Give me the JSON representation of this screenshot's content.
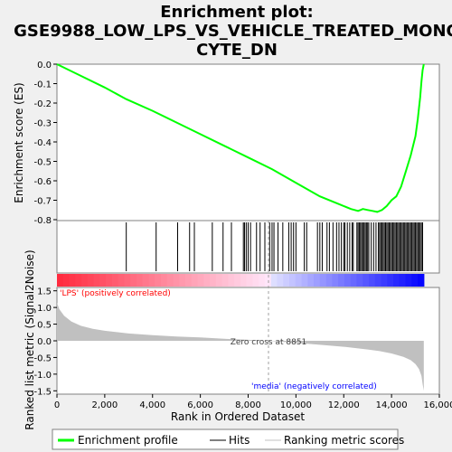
{
  "chart_data": {
    "type": "line",
    "title_lines": [
      "Enrichment plot:",
      "GSE9988_LOW_LPS_VS_VEHICLE_TREATED_MONO",
      "CYTE_DN"
    ],
    "xlabel": "Rank in Ordered Dataset",
    "xlim": [
      0,
      16000
    ],
    "x_ticks": [
      0,
      2000,
      4000,
      6000,
      8000,
      10000,
      12000,
      14000,
      16000
    ],
    "x_tick_labels": [
      "0",
      "2,000",
      "4,000",
      "6,000",
      "8,000",
      "10,000",
      "12,000",
      "14,000",
      "16,000"
    ],
    "enrichment_panel": {
      "ylabel": "Enrichment score (ES)",
      "ylim": [
        -0.8,
        0.0
      ],
      "y_ticks": [
        0.0,
        -0.1,
        -0.2,
        -0.3,
        -0.4,
        -0.5,
        -0.6,
        -0.7,
        -0.8
      ],
      "y_tick_labels": [
        "0.0",
        "-0.1",
        "-0.2",
        "-0.3",
        "-0.4",
        "-0.5",
        "-0.6",
        "-0.7",
        "-0.8"
      ],
      "series_name": "Enrichment profile",
      "color": "#00ff00",
      "x": [
        0,
        1000,
        2000,
        2900,
        4000,
        5000,
        6000,
        7000,
        8000,
        9000,
        10000,
        11000,
        11800,
        12300,
        12600,
        12700,
        12800,
        13000,
        13200,
        13400,
        13600,
        13800,
        14000,
        14200,
        14400,
        14600,
        14800,
        15000,
        15100,
        15200,
        15250,
        15300,
        15350
      ],
      "y": [
        0.0,
        -0.06,
        -0.12,
        -0.18,
        -0.24,
        -0.3,
        -0.36,
        -0.42,
        -0.48,
        -0.54,
        -0.61,
        -0.68,
        -0.72,
        -0.745,
        -0.755,
        -0.75,
        -0.745,
        -0.75,
        -0.755,
        -0.76,
        -0.75,
        -0.73,
        -0.7,
        -0.68,
        -0.63,
        -0.55,
        -0.47,
        -0.37,
        -0.28,
        -0.17,
        -0.09,
        -0.03,
        0.0
      ]
    },
    "hits_panel": {
      "series_name": "Hits",
      "hit_positions": [
        2900,
        4150,
        5050,
        5550,
        5750,
        6500,
        6950,
        7300,
        7800,
        7850,
        7920,
        8000,
        8100,
        8350,
        8500,
        8700,
        8900,
        9000,
        9080,
        9250,
        9450,
        9700,
        9800,
        9900,
        10000,
        10350,
        10450,
        10900,
        11000,
        11100,
        11300,
        11400,
        11550,
        11700,
        11800,
        11900,
        12000,
        12050,
        12150,
        12250,
        12350,
        12400,
        12550,
        12600,
        12650,
        12700,
        12750,
        12800,
        12850,
        12900,
        12950,
        13000,
        13050,
        13150,
        13250,
        13350,
        13450,
        13500,
        13550,
        13600,
        13650,
        13700,
        13750,
        13800,
        13850,
        13900,
        13950,
        14000,
        14050,
        14100,
        14150,
        14200,
        14250,
        14300,
        14350,
        14400,
        14450,
        14500,
        14550,
        14600,
        14650,
        14700,
        14750,
        14800,
        14850,
        14900,
        14950,
        15000,
        15050,
        15100,
        15150,
        15200,
        15250,
        15300
      ]
    },
    "metric_panel": {
      "ylabel": "Ranked list metric (Signal2Noise)",
      "ylim": [
        -1.6,
        1.6
      ],
      "y_ticks": [
        1.5,
        1.0,
        0.5,
        0.0,
        -0.5,
        -1.0,
        -1.5
      ],
      "y_tick_labels": [
        "1.5",
        "1.0",
        "0.5",
        "0.0",
        "-0.5",
        "-1.0",
        "-1.5"
      ],
      "series_name": "Ranking metric scores",
      "x": [
        0,
        100,
        300,
        600,
        1000,
        1500,
        2000,
        3000,
        4000,
        5000,
        6000,
        7000,
        8000,
        8851,
        10000,
        11000,
        12000,
        13000,
        13500,
        14000,
        14500,
        14800,
        15000,
        15150,
        15250,
        15300,
        15350
      ],
      "y": [
        1.15,
        0.95,
        0.75,
        0.58,
        0.45,
        0.36,
        0.3,
        0.22,
        0.17,
        0.13,
        0.1,
        0.06,
        0.03,
        0.0,
        -0.06,
        -0.12,
        -0.18,
        -0.26,
        -0.31,
        -0.38,
        -0.48,
        -0.58,
        -0.7,
        -0.85,
        -1.05,
        -1.3,
        -1.5
      ],
      "zero_cross_label": "Zero cross at 8851",
      "zero_cross": 8851,
      "positive_label": "'LPS' (positively correlated)",
      "negative_label": "'media' (negatively correlated)",
      "positive_color": "#ff0000",
      "negative_color": "#0000ff"
    },
    "legend": {
      "placement": "bottom",
      "entries": [
        "Enrichment profile",
        "Hits",
        "Ranking metric scores"
      ]
    }
  }
}
